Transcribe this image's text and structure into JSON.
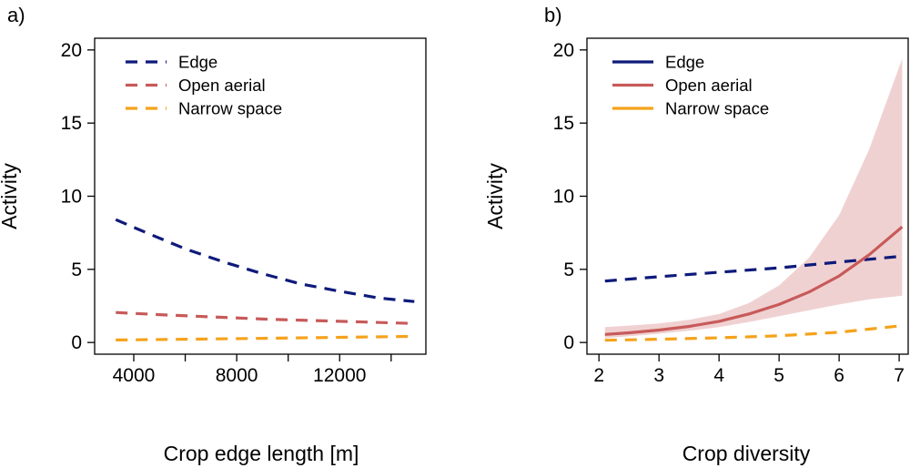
{
  "chart_data": [
    {
      "panel_label": "a)",
      "type": "line",
      "xlabel": "Crop edge length [m]",
      "ylabel": "Activity",
      "xlim": [
        2480,
        15350
      ],
      "ylim": [
        -0.8,
        20.8
      ],
      "xticks": [
        4000,
        6000,
        8000,
        10000,
        12000,
        14000
      ],
      "xtick_labels": [
        "4000",
        "",
        "8000",
        "",
        "12000",
        ""
      ],
      "yticks": [
        0,
        5,
        10,
        15,
        20
      ],
      "ytick_labels": [
        "0",
        "5",
        "10",
        "15",
        "20"
      ],
      "legend_position": "top-left",
      "series": [
        {
          "name": "Edge",
          "color": "#0e1a7a",
          "style": "dashed",
          "x": [
            3300,
            4500,
            6000,
            7500,
            9000,
            10500,
            12000,
            13500,
            14900
          ],
          "y": [
            8.4,
            7.5,
            6.4,
            5.5,
            4.7,
            4.0,
            3.5,
            3.05,
            2.8
          ]
        },
        {
          "name": "Open aerial",
          "color": "#c85a5a",
          "style": "dashed",
          "x": [
            3300,
            5000,
            7000,
            9000,
            11000,
            13000,
            14900
          ],
          "y": [
            2.05,
            1.9,
            1.75,
            1.6,
            1.5,
            1.4,
            1.3
          ]
        },
        {
          "name": "Narrow space",
          "color": "#f5a21b",
          "style": "dashed",
          "x": [
            3300,
            6000,
            9000,
            12000,
            14900
          ],
          "y": [
            0.17,
            0.22,
            0.28,
            0.35,
            0.42
          ]
        }
      ]
    },
    {
      "panel_label": "b)",
      "type": "line",
      "xlabel": "Crop diversity",
      "ylabel": "Activity",
      "xlim": [
        1.8,
        7.15
      ],
      "ylim": [
        -0.8,
        20.8
      ],
      "xticks": [
        2,
        3,
        4,
        5,
        6,
        7
      ],
      "xtick_labels": [
        "2",
        "3",
        "4",
        "5",
        "6",
        "7"
      ],
      "yticks": [
        0,
        5,
        10,
        15,
        20
      ],
      "ytick_labels": [
        "0",
        "5",
        "10",
        "15",
        "20"
      ],
      "legend_position": "top-left",
      "series": [
        {
          "name": "Edge",
          "color": "#0e1a7a",
          "style": "dashed",
          "x": [
            2.1,
            3,
            4,
            5,
            6,
            7.05
          ],
          "y": [
            4.2,
            4.5,
            4.8,
            5.1,
            5.5,
            5.9
          ]
        },
        {
          "name": "Open aerial",
          "color": "#c85a5a",
          "style": "solid",
          "x": [
            2.1,
            2.5,
            3,
            3.5,
            4,
            4.5,
            5,
            5.5,
            6,
            6.5,
            7.05
          ],
          "y": [
            0.55,
            0.66,
            0.85,
            1.1,
            1.45,
            1.95,
            2.6,
            3.45,
            4.55,
            6.0,
            7.9
          ],
          "ci_lower": [
            0.3,
            0.42,
            0.6,
            0.8,
            1.05,
            1.4,
            1.8,
            2.2,
            2.6,
            2.95,
            3.2
          ],
          "ci_upper": [
            1.05,
            1.15,
            1.3,
            1.55,
            1.95,
            2.7,
            3.9,
            5.8,
            8.7,
            13.2,
            19.4
          ]
        },
        {
          "name": "Narrow space",
          "color": "#f5a21b",
          "style": "dashed",
          "x": [
            2.1,
            3,
            4,
            5,
            6,
            7.05
          ],
          "y": [
            0.15,
            0.22,
            0.32,
            0.46,
            0.7,
            1.15
          ]
        }
      ]
    }
  ]
}
